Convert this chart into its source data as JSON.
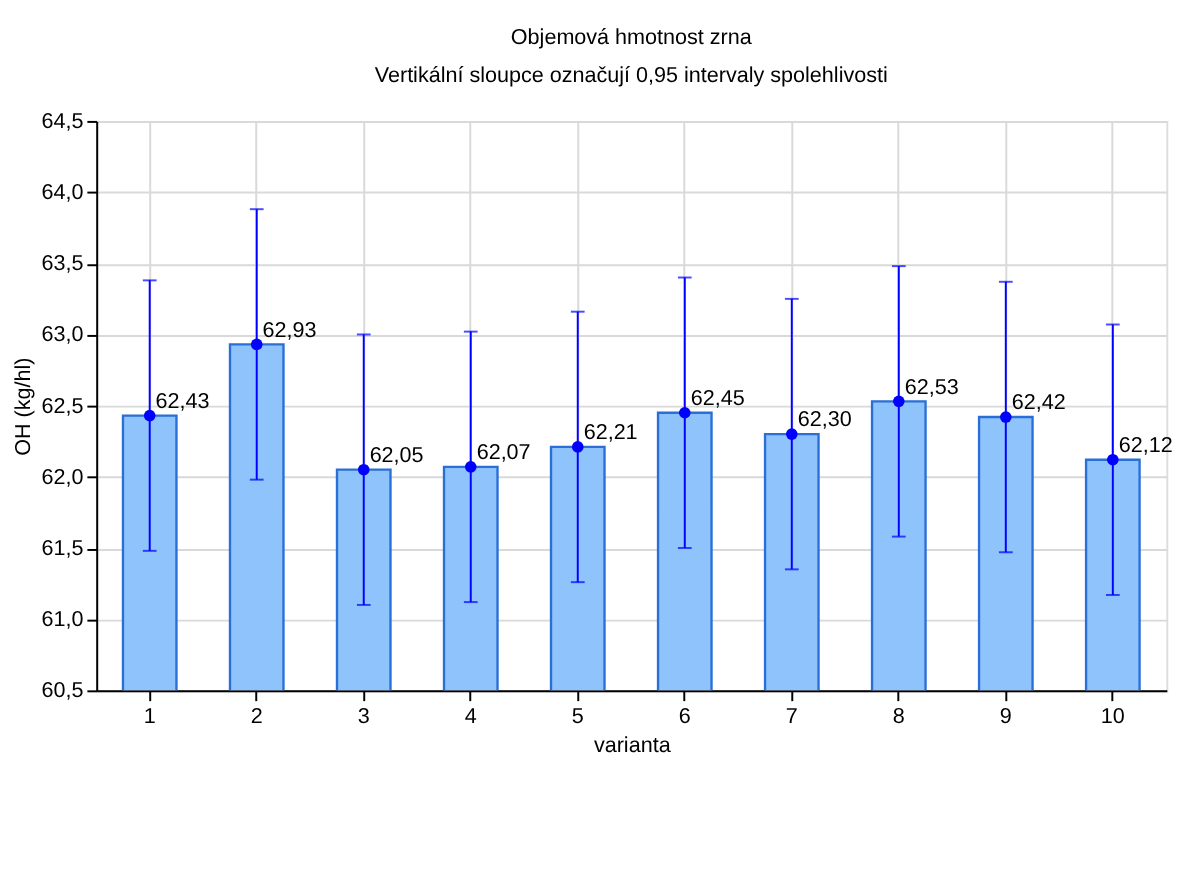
{
  "chart_data": {
    "type": "bar",
    "title": "Objemová hmotnost zrna",
    "subtitle": "Vertikální sloupce označují 0,95 intervaly spolehlivosti",
    "xlabel": "varianta",
    "ylabel": "OH (kg/hl)",
    "categories": [
      "1",
      "2",
      "3",
      "4",
      "5",
      "6",
      "7",
      "8",
      "9",
      "10"
    ],
    "series": [
      {
        "color": "#8ec3fb",
        "values": [
          62.43,
          62.93,
          62.05,
          62.07,
          62.21,
          62.45,
          62.3,
          62.53,
          62.42,
          62.12
        ],
        "value_labels": [
          "62,43",
          "62,93",
          "62,05",
          "62,07",
          "62,21",
          "62,45",
          "62,30",
          "62,53",
          "62,42",
          "62,12"
        ]
      },
      {
        "type": "scatter",
        "color": "#0000ff",
        "x": [
          "1",
          "2",
          "3",
          "4",
          "5",
          "6",
          "7",
          "8",
          "9",
          "10"
        ],
        "values": [
          62.43,
          62.93,
          62.05,
          62.07,
          62.21,
          62.45,
          62.3,
          62.53,
          62.42,
          62.12
        ],
        "errors": [
          0.95,
          0.95,
          0.95,
          0.95,
          0.95,
          0.95,
          0.95,
          0.95,
          0.95,
          0.95
        ]
      }
    ],
    "ylim": [
      60.5,
      64.5
    ],
    "yticks": [
      {
        "value": 60.5,
        "label": "60,5"
      },
      {
        "value": 61,
        "label": "61,0"
      },
      {
        "value": 61.5,
        "label": "61,5"
      },
      {
        "value": 62,
        "label": "62,0"
      },
      {
        "value": 62.5,
        "label": "62,5"
      },
      {
        "value": 63,
        "label": "63,0"
      },
      {
        "value": 63.5,
        "label": "63,5"
      },
      {
        "value": 64,
        "label": "64,0"
      },
      {
        "value": 64.5,
        "label": "64,5"
      }
    ],
    "grid": true,
    "marker": "circle"
  }
}
